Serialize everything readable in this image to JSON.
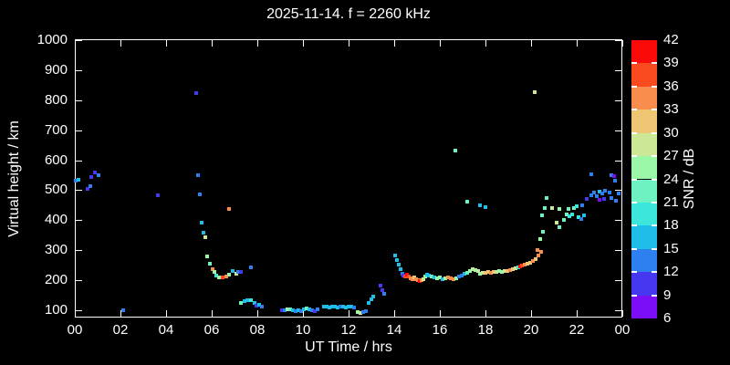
{
  "title": "2025-11-14. f = 2260 kHz",
  "axes": {
    "y": {
      "label": "Virtual height / km",
      "ticks": [
        100,
        200,
        300,
        400,
        500,
        600,
        700,
        800,
        900,
        1000
      ],
      "min": 100,
      "max": 1000
    },
    "x": {
      "label": "UT Time / hrs",
      "tick_labels": [
        "00",
        "02",
        "04",
        "06",
        "08",
        "10",
        "12",
        "14",
        "16",
        "18",
        "20",
        "22",
        "00"
      ],
      "tick_hours": [
        0,
        2,
        4,
        6,
        8,
        10,
        12,
        14,
        16,
        18,
        20,
        22,
        24
      ]
    },
    "colorbar": {
      "label": "SNR / dB",
      "ticks": [
        6,
        9,
        12,
        15,
        18,
        21,
        24,
        27,
        30,
        33,
        36,
        39,
        42
      ],
      "min": 6,
      "max": 42,
      "colors_bottom_to_top": [
        "#7B0DF7",
        "#4638F0",
        "#2E7FF0",
        "#1EBEE8",
        "#3CE6DA",
        "#6FF2C1",
        "#9AF7A7",
        "#CCE896",
        "#EEC673",
        "#F98D4D",
        "#FA4A20",
        "#FB0A0A"
      ]
    }
  },
  "chart_data": {
    "type": "scatter",
    "title": "2025-11-14. f = 2260 kHz",
    "xlabel": "UT Time / hrs",
    "ylabel": "Virtual height / km",
    "color_label": "SNR / dB",
    "xlim": [
      0,
      24
    ],
    "ylim": [
      75,
      1000
    ],
    "snr_lim": [
      6,
      42
    ],
    "grid": false,
    "legend_position": "colorbar-right",
    "point_format": [
      "ut_hours",
      "virtual_height_km",
      "snr_db"
    ],
    "points": [
      [
        0.05,
        533,
        13.5
      ],
      [
        0.16,
        535,
        16.5
      ],
      [
        0.56,
        503,
        10.5
      ],
      [
        0.68,
        513,
        13.5
      ],
      [
        0.72,
        544,
        10.5
      ],
      [
        0.88,
        559,
        10.5
      ],
      [
        1.03,
        549,
        13.5
      ],
      [
        2.12,
        100,
        13.5
      ],
      [
        3.63,
        482,
        10.5
      ],
      [
        5.31,
        823,
        10.5
      ],
      [
        5.4,
        551,
        13.5
      ],
      [
        5.48,
        485,
        13.5
      ],
      [
        5.57,
        393,
        16.5
      ],
      [
        5.65,
        359,
        16.5
      ],
      [
        5.71,
        344,
        28.5
      ],
      [
        5.81,
        280,
        25.5
      ],
      [
        5.93,
        254,
        22.5
      ],
      [
        6.03,
        238,
        34.5
      ],
      [
        6.12,
        227,
        25.5
      ],
      [
        6.21,
        216,
        19.5
      ],
      [
        6.33,
        210,
        25.5
      ],
      [
        6.48,
        209,
        37.5
      ],
      [
        6.63,
        213,
        34.5
      ],
      [
        6.75,
        437,
        34.5
      ],
      [
        6.76,
        219,
        25.5
      ],
      [
        6.92,
        231,
        16.5
      ],
      [
        7.07,
        222,
        28.5
      ],
      [
        7.17,
        229,
        13.5
      ],
      [
        7.28,
        123,
        22.5
      ],
      [
        7.29,
        228,
        10.5
      ],
      [
        7.43,
        130,
        16.5
      ],
      [
        7.55,
        134,
        16.5
      ],
      [
        7.71,
        134,
        19.5
      ],
      [
        7.72,
        244,
        13.5
      ],
      [
        7.88,
        123,
        16.5
      ],
      [
        7.96,
        116,
        10.5
      ],
      [
        8.08,
        118,
        16.5
      ],
      [
        8.19,
        112,
        13.5
      ],
      [
        9.08,
        101,
        10.5
      ],
      [
        9.2,
        101,
        13.5
      ],
      [
        9.32,
        104,
        25.5
      ],
      [
        9.44,
        104,
        22.5
      ],
      [
        9.56,
        101,
        16.5
      ],
      [
        9.68,
        98,
        13.5
      ],
      [
        9.8,
        101,
        16.5
      ],
      [
        9.92,
        98,
        13.5
      ],
      [
        10.04,
        104,
        16.5
      ],
      [
        10.16,
        107,
        22.5
      ],
      [
        10.28,
        104,
        16.5
      ],
      [
        10.4,
        101,
        13.5
      ],
      [
        10.52,
        98,
        10.5
      ],
      [
        10.64,
        104,
        13.5
      ],
      [
        10.92,
        113,
        16.5
      ],
      [
        11.04,
        113,
        16.5
      ],
      [
        11.16,
        110,
        16.5
      ],
      [
        11.28,
        113,
        16.5
      ],
      [
        11.4,
        113,
        16.5
      ],
      [
        11.52,
        110,
        16.5
      ],
      [
        11.64,
        113,
        13.5
      ],
      [
        11.76,
        113,
        16.5
      ],
      [
        11.88,
        110,
        16.5
      ],
      [
        12.0,
        113,
        16.5
      ],
      [
        12.12,
        113,
        16.5
      ],
      [
        12.24,
        110,
        13.5
      ],
      [
        12.4,
        95,
        25.5
      ],
      [
        12.52,
        92,
        28.5
      ],
      [
        12.64,
        95,
        13.5
      ],
      [
        12.76,
        98,
        13.5
      ],
      [
        12.88,
        125,
        16.5
      ],
      [
        13.0,
        137,
        16.5
      ],
      [
        13.08,
        146,
        16.5
      ],
      [
        13.4,
        181,
        10.5
      ],
      [
        13.48,
        166,
        10.5
      ],
      [
        13.56,
        156,
        13.5
      ],
      [
        14.05,
        282,
        16.5
      ],
      [
        14.13,
        267,
        16.5
      ],
      [
        14.21,
        252,
        16.5
      ],
      [
        14.29,
        237,
        16.5
      ],
      [
        14.37,
        222,
        13.5
      ],
      [
        14.41,
        216,
        10.5
      ],
      [
        14.49,
        213,
        37.5
      ],
      [
        14.57,
        219,
        40.5
      ],
      [
        14.65,
        213,
        37.5
      ],
      [
        14.73,
        207,
        34.5
      ],
      [
        14.81,
        204,
        34.5
      ],
      [
        14.89,
        210,
        31.5
      ],
      [
        14.97,
        204,
        34.5
      ],
      [
        15.05,
        201,
        34.5
      ],
      [
        15.13,
        198,
        40.5
      ],
      [
        15.21,
        201,
        34.5
      ],
      [
        15.29,
        204,
        28.5
      ],
      [
        15.37,
        213,
        25.5
      ],
      [
        15.45,
        219,
        16.5
      ],
      [
        15.53,
        216,
        16.5
      ],
      [
        15.65,
        213,
        22.5
      ],
      [
        15.77,
        210,
        16.5
      ],
      [
        15.89,
        207,
        25.5
      ],
      [
        16.01,
        210,
        25.5
      ],
      [
        16.13,
        204,
        16.5
      ],
      [
        16.25,
        207,
        25.5
      ],
      [
        16.37,
        210,
        34.5
      ],
      [
        16.49,
        207,
        34.5
      ],
      [
        16.61,
        204,
        34.5
      ],
      [
        16.68,
        632,
        22.5
      ],
      [
        16.73,
        207,
        25.5
      ],
      [
        16.85,
        213,
        13.5
      ],
      [
        16.97,
        216,
        13.5
      ],
      [
        17.09,
        222,
        16.5
      ],
      [
        17.2,
        462,
        22.5
      ],
      [
        17.21,
        225,
        22.5
      ],
      [
        17.33,
        231,
        25.5
      ],
      [
        17.45,
        237,
        28.5
      ],
      [
        17.57,
        234,
        25.5
      ],
      [
        17.69,
        231,
        28.5
      ],
      [
        17.76,
        450,
        16.5
      ],
      [
        17.76,
        222,
        25.5
      ],
      [
        17.88,
        225,
        28.5
      ],
      [
        18.0,
        444,
        16.5
      ],
      [
        18.0,
        225,
        31.5
      ],
      [
        18.12,
        228,
        31.5
      ],
      [
        18.24,
        225,
        34.5
      ],
      [
        18.36,
        228,
        31.5
      ],
      [
        18.48,
        228,
        28.5
      ],
      [
        18.6,
        231,
        25.5
      ],
      [
        18.72,
        228,
        25.5
      ],
      [
        18.84,
        231,
        28.5
      ],
      [
        18.96,
        231,
        31.5
      ],
      [
        19.08,
        234,
        34.5
      ],
      [
        19.2,
        237,
        31.5
      ],
      [
        19.32,
        240,
        28.5
      ],
      [
        19.44,
        243,
        19.5
      ],
      [
        19.52,
        246,
        40.5
      ],
      [
        19.6,
        249,
        37.5
      ],
      [
        19.72,
        252,
        34.5
      ],
      [
        19.84,
        255,
        31.5
      ],
      [
        19.96,
        258,
        31.5
      ],
      [
        20.08,
        264,
        34.5
      ],
      [
        20.16,
        827,
        28.5
      ],
      [
        20.2,
        270,
        31.5
      ],
      [
        20.28,
        301,
        34.5
      ],
      [
        20.32,
        282,
        34.5
      ],
      [
        20.4,
        337,
        25.5
      ],
      [
        20.44,
        294,
        34.5
      ],
      [
        20.48,
        416,
        22.5
      ],
      [
        20.52,
        362,
        22.5
      ],
      [
        20.6,
        441,
        22.5
      ],
      [
        20.68,
        474,
        22.5
      ],
      [
        20.92,
        441,
        28.5
      ],
      [
        21.12,
        392,
        28.5
      ],
      [
        21.24,
        438,
        25.5
      ],
      [
        21.24,
        378,
        22.5
      ],
      [
        21.44,
        401,
        22.5
      ],
      [
        21.56,
        419,
        22.5
      ],
      [
        21.64,
        438,
        22.5
      ],
      [
        21.68,
        413,
        19.5
      ],
      [
        21.8,
        419,
        19.5
      ],
      [
        21.88,
        441,
        22.5
      ],
      [
        22.0,
        447,
        19.5
      ],
      [
        22.08,
        410,
        19.5
      ],
      [
        22.2,
        404,
        13.5
      ],
      [
        22.24,
        450,
        13.5
      ],
      [
        22.32,
        416,
        16.5
      ],
      [
        22.44,
        471,
        10.5
      ],
      [
        22.64,
        483,
        13.5
      ],
      [
        22.64,
        553,
        13.5
      ],
      [
        22.76,
        492,
        13.5
      ],
      [
        22.88,
        480,
        13.5
      ],
      [
        23.0,
        495,
        16.5
      ],
      [
        23.0,
        468,
        7.5
      ],
      [
        23.12,
        489,
        13.5
      ],
      [
        23.2,
        471,
        10.5
      ],
      [
        23.24,
        498,
        13.5
      ],
      [
        23.44,
        492,
        13.5
      ],
      [
        23.52,
        550,
        13.5
      ],
      [
        23.52,
        474,
        13.5
      ],
      [
        23.64,
        547,
        7.5
      ],
      [
        23.68,
        532,
        13.5
      ],
      [
        23.72,
        465,
        13.5
      ],
      [
        23.85,
        490,
        13.5
      ]
    ]
  }
}
